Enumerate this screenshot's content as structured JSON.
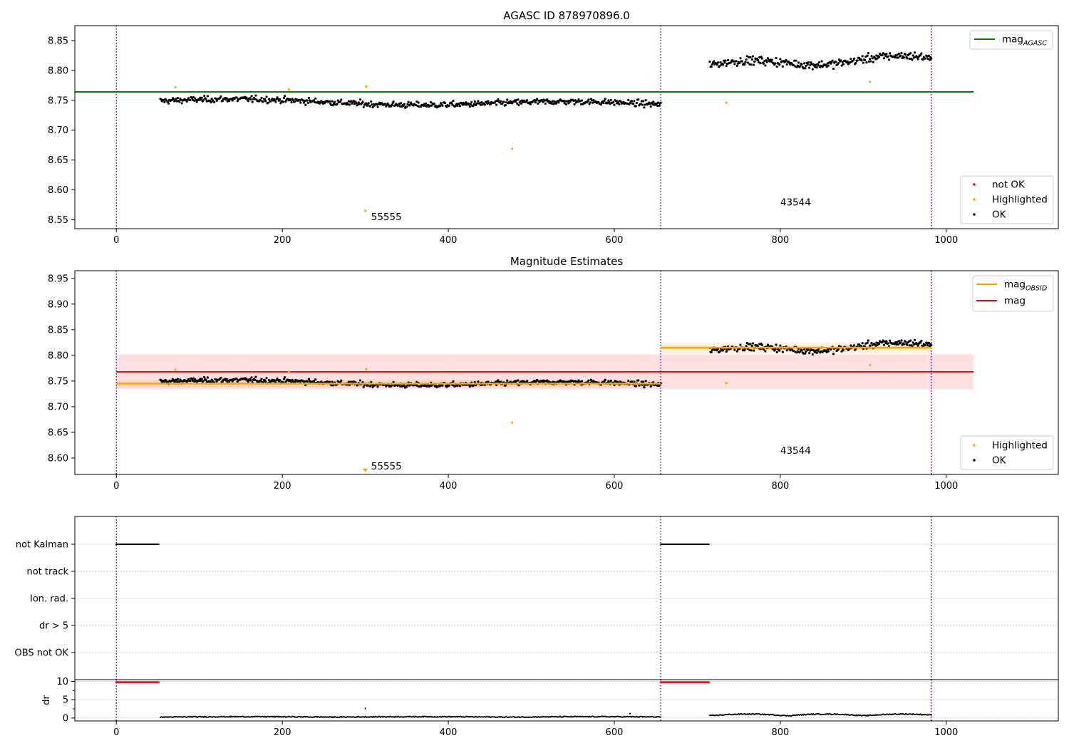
{
  "figure": {
    "panels": [
      {
        "id": "top",
        "title": "AGASC ID 878970896.0",
        "xlim": [
          -50,
          1135
        ],
        "ylim": [
          8.535,
          8.875
        ],
        "xticks": [
          0,
          200,
          400,
          600,
          800,
          1000
        ],
        "yticks": [
          8.55,
          8.6,
          8.65,
          8.7,
          8.75,
          8.8,
          8.85
        ],
        "ytick_labels": [
          "8.55",
          "8.60",
          "8.65",
          "8.70",
          "8.75",
          "8.80",
          "8.85"
        ],
        "legend_lines": [
          {
            "label": "mag",
            "subscript": "AGASC",
            "color": "#008000"
          }
        ],
        "legend_markers": [
          {
            "label": "not OK",
            "color": "#ff0000"
          },
          {
            "label": "Highlighted",
            "color": "#ffa500"
          },
          {
            "label": "OK",
            "color": "#000000"
          }
        ],
        "annotations": [
          {
            "text": "55555",
            "x": 307,
            "y": 8.555
          },
          {
            "text": "43544",
            "x": 800,
            "y": 8.58
          }
        ]
      },
      {
        "id": "middle",
        "title": "Magnitude Estimates",
        "xlim": [
          -50,
          1135
        ],
        "ylim": [
          8.568,
          8.965
        ],
        "xticks": [
          0,
          200,
          400,
          600,
          800,
          1000
        ],
        "yticks": [
          8.6,
          8.65,
          8.7,
          8.75,
          8.8,
          8.85,
          8.9,
          8.95
        ],
        "ytick_labels": [
          "8.60",
          "8.65",
          "8.70",
          "8.75",
          "8.80",
          "8.85",
          "8.90",
          "8.95"
        ],
        "legend_lines": [
          {
            "label": "mag",
            "subscript": "OBSID",
            "color": "#ffa500"
          },
          {
            "label": "mag",
            "subscript": "",
            "color": "#ff0000"
          }
        ],
        "legend_markers": [
          {
            "label": "Highlighted",
            "color": "#ffa500"
          },
          {
            "label": "OK",
            "color": "#000000"
          }
        ],
        "annotations": [
          {
            "text": "55555",
            "x": 307,
            "y": 8.585
          },
          {
            "text": "43544",
            "x": 800,
            "y": 8.615
          }
        ]
      },
      {
        "id": "flags",
        "xlim": [
          -50,
          1135
        ],
        "categories": [
          "not Kalman",
          "not track",
          "Ion. rad.",
          "dr > 5",
          "OBS not OK"
        ]
      },
      {
        "id": "dr",
        "ylabel": "dr",
        "xlim": [
          -50,
          1135
        ],
        "ylim": [
          -0.8,
          10.5
        ],
        "xticks": [
          0,
          200,
          400,
          600,
          800,
          1000
        ],
        "yticks": [
          0,
          5,
          10
        ],
        "ytick_labels": [
          "0",
          "5",
          "10"
        ]
      }
    ]
  },
  "chart_data": {
    "type": "scatter",
    "x_unit": "sample index",
    "obsid_boundaries": [
      0,
      656,
      982
    ],
    "mag_agasc": 8.764,
    "mag_overall": {
      "value": 8.768,
      "band": [
        8.734,
        8.802
      ],
      "x_range": [
        0,
        1033
      ]
    },
    "mag_obsid": [
      {
        "obsid": "55555",
        "x_range": [
          0,
          656
        ],
        "value": 8.745,
        "band": [
          8.738,
          8.752
        ]
      },
      {
        "obsid": "43544",
        "x_range": [
          656,
          982
        ],
        "value": 8.815,
        "band": [
          8.805,
          8.825
        ]
      }
    ],
    "highlighted_points": [
      {
        "x": 71,
        "y": 8.772
      },
      {
        "x": 208,
        "y": 8.768
      },
      {
        "x": 301,
        "y": 8.773
      },
      {
        "x": 300,
        "y": 8.565
      },
      {
        "x": 477,
        "y": 8.669
      },
      {
        "x": 735,
        "y": 8.746
      },
      {
        "x": 908,
        "y": 8.781
      }
    ],
    "ok_series": [
      {
        "x_start": 53,
        "x_end": 656,
        "mean": 8.746,
        "trend": -0.006,
        "scatter": 0.0065
      },
      {
        "x_start": 715,
        "x_end": 982,
        "mean": 8.815,
        "trend": 0.012,
        "scatter": 0.009
      }
    ],
    "flags": {
      "not Kalman": [
        [
          0,
          51
        ],
        [
          656,
          714
        ]
      ],
      "not track": [],
      "Ion. rad.": [],
      "dr > 5": [],
      "OBS not OK": []
    },
    "dr_series": {
      "flagged_value": 9.8,
      "flagged_ranges": [
        [
          0,
          51
        ],
        [
          656,
          714
        ]
      ],
      "ok_ranges": [
        {
          "x_start": 53,
          "x_end": 656,
          "level": 0.2
        },
        {
          "x_start": 715,
          "x_end": 982,
          "level": 0.8
        }
      ],
      "outliers": [
        {
          "x": 300,
          "y": 2.6
        },
        {
          "x": 619,
          "y": 1.2
        }
      ]
    }
  }
}
